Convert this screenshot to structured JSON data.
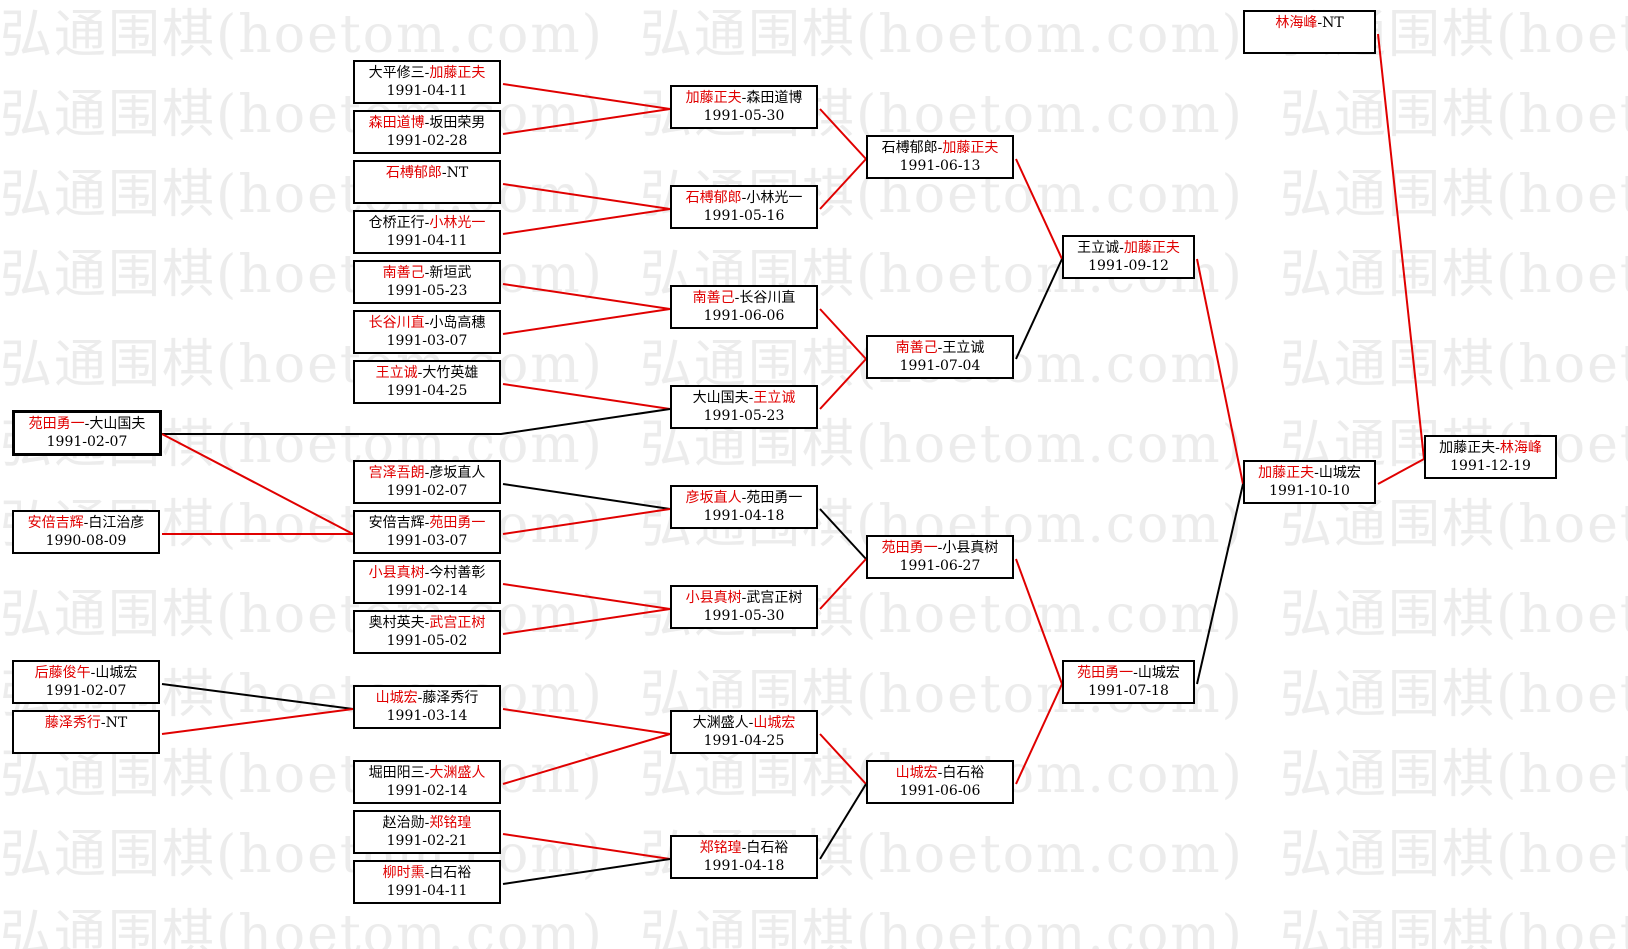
{
  "watermark": "弘通围棋(hoetom.com)",
  "colors": {
    "winner": "#e00000",
    "loser": "#000000",
    "watermark": "#ececec"
  },
  "matches": {
    "c0_0": {
      "p1": "苑田勇一",
      "p2": "大山国夫",
      "winner": 1,
      "date": "1991-02-07"
    },
    "c0_1": {
      "p1": "安倍吉辉",
      "p2": "白江治彦",
      "winner": 1,
      "date": "1990-08-09"
    },
    "c0_2": {
      "p1": "后藤俊午",
      "p2": "山城宏",
      "winner": 1,
      "date": "1991-02-07"
    },
    "c0_3": {
      "p1": "藤泽秀行",
      "p2": "NT",
      "winner": 1,
      "date": ""
    },
    "c1_0": {
      "p1": "大平修三",
      "p2": "加藤正夫",
      "winner": 2,
      "date": "1991-04-11"
    },
    "c1_1": {
      "p1": "森田道博",
      "p2": "坂田荣男",
      "winner": 1,
      "date": "1991-02-28"
    },
    "c1_2": {
      "p1": "石榑郁郎",
      "p2": "NT",
      "winner": 1,
      "date": ""
    },
    "c1_3": {
      "p1": "仓桥正行",
      "p2": "小林光一",
      "winner": 2,
      "date": "1991-04-11"
    },
    "c1_4": {
      "p1": "南善己",
      "p2": "新垣武",
      "winner": 1,
      "date": "1991-05-23"
    },
    "c1_5": {
      "p1": "长谷川直",
      "p2": "小岛高穗",
      "winner": 1,
      "date": "1991-03-07"
    },
    "c1_6": {
      "p1": "王立诚",
      "p2": "大竹英雄",
      "winner": 1,
      "date": "1991-04-25"
    },
    "c1_7": {
      "p1": "宫泽吾朗",
      "p2": "彦坂直人",
      "winner": 1,
      "date": "1991-02-07"
    },
    "c1_8": {
      "p1": "安倍吉辉",
      "p2": "苑田勇一",
      "winner": 2,
      "date": "1991-03-07"
    },
    "c1_9": {
      "p1": "小县真树",
      "p2": "今村善彰",
      "winner": 1,
      "date": "1991-02-14"
    },
    "c1_10": {
      "p1": "奥村英夫",
      "p2": "武宫正树",
      "winner": 2,
      "date": "1991-05-02"
    },
    "c1_11": {
      "p1": "山城宏",
      "p2": "藤泽秀行",
      "winner": 1,
      "date": "1991-03-14"
    },
    "c1_12": {
      "p1": "堀田阳三",
      "p2": "大渊盛人",
      "winner": 2,
      "date": "1991-02-14"
    },
    "c1_13": {
      "p1": "赵治勋",
      "p2": "郑铭瑝",
      "winner": 2,
      "date": "1991-02-21"
    },
    "c1_14": {
      "p1": "柳时熏",
      "p2": "白石裕",
      "winner": 1,
      "date": "1991-04-11"
    },
    "c2_0": {
      "p1": "加藤正夫",
      "p2": "森田道博",
      "winner": 1,
      "date": "1991-05-30"
    },
    "c2_1": {
      "p1": "石榑郁郎",
      "p2": "小林光一",
      "winner": 1,
      "date": "1991-05-16"
    },
    "c2_2": {
      "p1": "南善己",
      "p2": "长谷川直",
      "winner": 1,
      "date": "1991-06-06"
    },
    "c2_3": {
      "p1": "大山国夫",
      "p2": "王立诚",
      "winner": 2,
      "date": "1991-05-23"
    },
    "c2_4": {
      "p1": "彦坂直人",
      "p2": "苑田勇一",
      "winner": 1,
      "date": "1991-04-18"
    },
    "c2_5": {
      "p1": "小县真树",
      "p2": "武宫正树",
      "winner": 1,
      "date": "1991-05-30"
    },
    "c2_6": {
      "p1": "大渊盛人",
      "p2": "山城宏",
      "winner": 2,
      "date": "1991-04-25"
    },
    "c2_7": {
      "p1": "郑铭瑝",
      "p2": "白石裕",
      "winner": 1,
      "date": "1991-04-18"
    },
    "c3_0": {
      "p1": "石榑郁郎",
      "p2": "加藤正夫",
      "winner": 2,
      "date": "1991-06-13"
    },
    "c3_1": {
      "p1": "南善己",
      "p2": "王立诚",
      "winner": 1,
      "date": "1991-07-04"
    },
    "c3_2": {
      "p1": "苑田勇一",
      "p2": "小县真树",
      "winner": 1,
      "date": "1991-06-27"
    },
    "c3_3": {
      "p1": "山城宏",
      "p2": "白石裕",
      "winner": 1,
      "date": "1991-06-06"
    },
    "c4_0": {
      "p1": "王立诚",
      "p2": "加藤正夫",
      "winner": 2,
      "date": "1991-09-12"
    },
    "c4_1": {
      "p1": "苑田勇一",
      "p2": "山城宏",
      "winner": 1,
      "date": "1991-07-18"
    },
    "c5_0": {
      "p1": "林海峰",
      "p2": "NT",
      "winner": 1,
      "date": ""
    },
    "c5_1": {
      "p1": "加藤正夫",
      "p2": "山城宏",
      "winner": 1,
      "date": "1991-10-10"
    },
    "c6_0": {
      "p1": "加藤正夫",
      "p2": "林海峰",
      "winner": 2,
      "date": "1991-12-19"
    }
  },
  "connections": [
    [
      "c1_0",
      "c2_0",
      "winner"
    ],
    [
      "c1_1",
      "c2_0",
      "winner"
    ],
    [
      "c1_2",
      "c2_1",
      "winner"
    ],
    [
      "c1_3",
      "c2_1",
      "winner"
    ],
    [
      "c1_4",
      "c2_2",
      "winner"
    ],
    [
      "c1_5",
      "c2_2",
      "winner"
    ],
    [
      "c1_6",
      "c2_3",
      "winner"
    ],
    [
      "c0_0",
      "c2_3",
      "loser"
    ],
    [
      "c0_0",
      "c1_8",
      "winner"
    ],
    [
      "c0_1",
      "c1_8",
      "winner"
    ],
    [
      "c1_7",
      "c2_4",
      "loser"
    ],
    [
      "c1_8",
      "c2_4",
      "winner"
    ],
    [
      "c1_9",
      "c2_5",
      "winner"
    ],
    [
      "c1_10",
      "c2_5",
      "winner"
    ],
    [
      "c0_2",
      "c1_11",
      "loser"
    ],
    [
      "c0_3",
      "c1_11",
      "winner"
    ],
    [
      "c1_11",
      "c2_6",
      "winner"
    ],
    [
      "c1_12",
      "c2_6",
      "winner"
    ],
    [
      "c1_13",
      "c2_7",
      "winner"
    ],
    [
      "c1_14",
      "c2_7",
      "loser"
    ],
    [
      "c2_0",
      "c3_0",
      "winner"
    ],
    [
      "c2_1",
      "c3_0",
      "winner"
    ],
    [
      "c2_2",
      "c3_1",
      "winner"
    ],
    [
      "c2_3",
      "c3_1",
      "winner"
    ],
    [
      "c2_4",
      "c3_2",
      "loser"
    ],
    [
      "c2_5",
      "c3_2",
      "winner"
    ],
    [
      "c2_6",
      "c3_3",
      "winner"
    ],
    [
      "c2_7",
      "c3_3",
      "loser"
    ],
    [
      "c3_0",
      "c4_0",
      "winner"
    ],
    [
      "c3_1",
      "c4_0",
      "loser"
    ],
    [
      "c3_2",
      "c4_1",
      "winner"
    ],
    [
      "c3_3",
      "c4_1",
      "winner"
    ],
    [
      "c4_0",
      "c5_1",
      "winner"
    ],
    [
      "c4_1",
      "c5_1",
      "loser"
    ],
    [
      "c5_0",
      "c6_0",
      "winner"
    ],
    [
      "c5_1",
      "c6_0",
      "winner"
    ]
  ]
}
